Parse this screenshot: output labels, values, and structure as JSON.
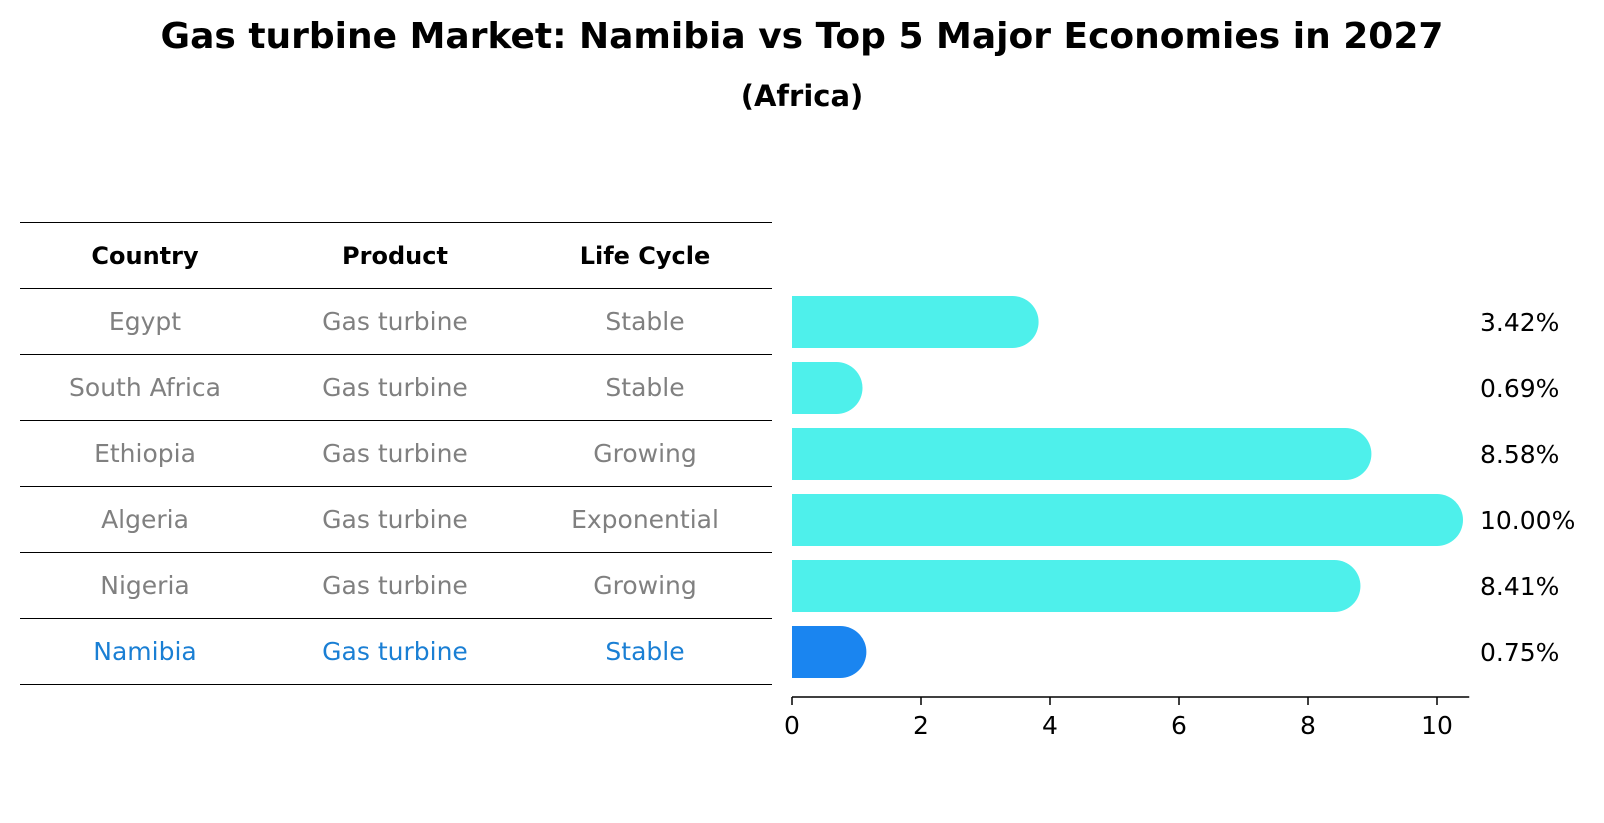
{
  "title": "Gas turbine Market: Namibia vs Top 5 Major Economies in 2027",
  "subtitle": "(Africa)",
  "table": {
    "headers": [
      "Country",
      "Product",
      "Life Cycle"
    ],
    "rows": [
      [
        "Egypt",
        "Gas turbine",
        "Stable"
      ],
      [
        "South Africa",
        "Gas turbine",
        "Stable"
      ],
      [
        "Ethiopia",
        "Gas turbine",
        "Growing"
      ],
      [
        "Algeria",
        "Gas turbine",
        "Exponential"
      ],
      [
        "Nigeria",
        "Gas turbine",
        "Growing"
      ],
      [
        "Namibia",
        "Gas turbine",
        "Stable"
      ]
    ]
  },
  "colors": {
    "bar": "#4ef0eb",
    "highlight": "#1a85f0",
    "highlight_text": "#1a7fd4",
    "muted_text": "#808080"
  },
  "chart_data": {
    "type": "bar",
    "orientation": "horizontal",
    "title": "Gas turbine Market: Namibia vs Top 5 Major Economies in 2027",
    "subtitle": "(Africa)",
    "categories": [
      "Egypt",
      "South Africa",
      "Ethiopia",
      "Algeria",
      "Nigeria",
      "Namibia"
    ],
    "values": [
      3.42,
      0.69,
      8.58,
      10.0,
      8.41,
      0.75
    ],
    "labels": [
      "3.42%",
      "0.69%",
      "8.58%",
      "10.00%",
      "8.41%",
      "0.75%"
    ],
    "highlight": "Namibia",
    "xlim": [
      0,
      10.5
    ],
    "xticks": [
      0,
      2,
      4,
      6,
      8,
      10
    ],
    "xtick_labels": [
      "0",
      "2",
      "4",
      "6",
      "8",
      "10"
    ],
    "xlabel": "",
    "ylabel": "",
    "grid": false
  }
}
